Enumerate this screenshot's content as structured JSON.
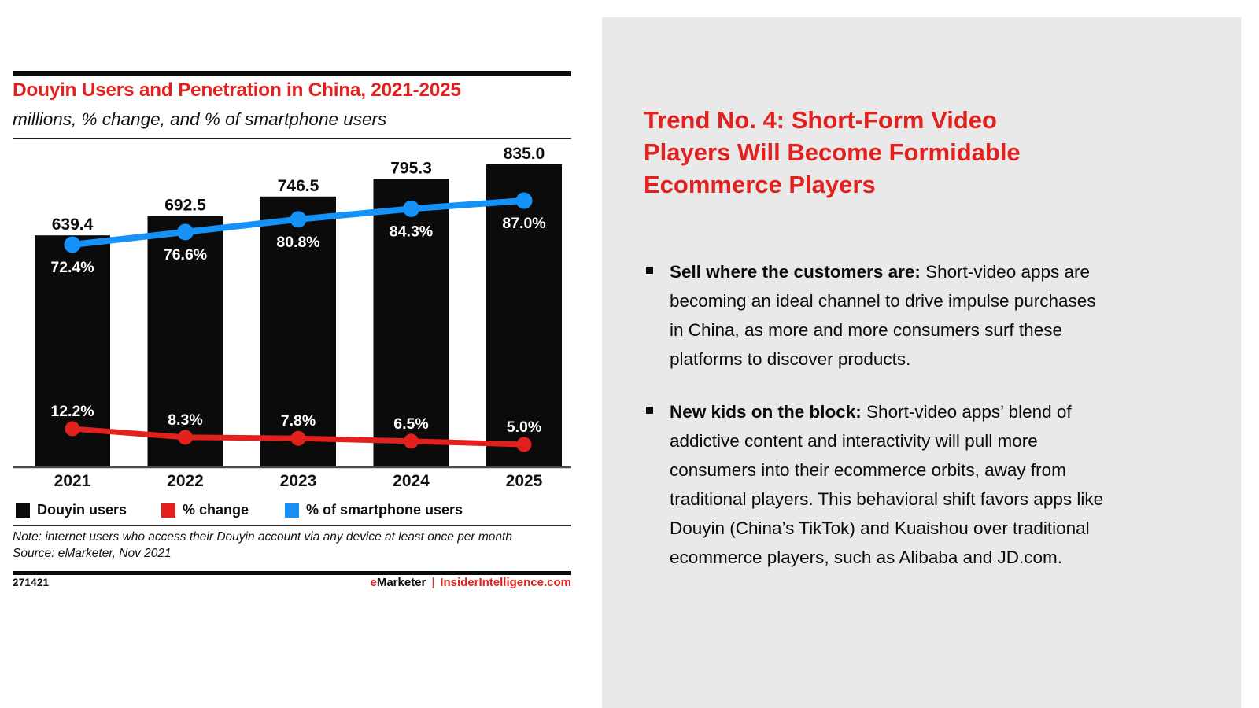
{
  "brand": {
    "red": "#e2211f",
    "blue": "#1591f8",
    "black": "#0b0b0b",
    "panel_bg": "#e9e9e9"
  },
  "chart": {
    "title": "Douyin Users and Penetration in China, 2021-2025",
    "subtitle": "millions, % change, and % of smartphone users",
    "legend": [
      {
        "label": "Douyin users",
        "color": "#0b0b0b"
      },
      {
        "label": "% change",
        "color": "#e2211f"
      },
      {
        "label": "% of smartphone users",
        "color": "#1591f8"
      }
    ],
    "note_line1": "Note: internet users who access their Douyin account via any device at least once per month",
    "note_line2": "Source: eMarketer, Nov 2021",
    "chart_id": "271421",
    "footer_brand_e": "e",
    "footer_brand_rest": "Marketer",
    "footer_separator": "|",
    "footer_site": "InsiderIntelligence.com"
  },
  "chart_data": {
    "type": "bar",
    "title": "Douyin Users and Penetration in China, 2021-2025",
    "subtitle": "millions, % change, and % of smartphone users",
    "categories": [
      "2021",
      "2022",
      "2023",
      "2024",
      "2025"
    ],
    "series": [
      {
        "name": "Douyin users",
        "type": "bar",
        "unit": "millions",
        "color": "#0b0b0b",
        "values": [
          639.4,
          692.5,
          746.5,
          795.3,
          835.0
        ]
      },
      {
        "name": "% change",
        "type": "line",
        "unit": "%",
        "color": "#e2211f",
        "values": [
          12.2,
          8.3,
          7.8,
          6.5,
          5.0
        ]
      },
      {
        "name": "% of smartphone users",
        "type": "line",
        "unit": "%",
        "color": "#1591f8",
        "values": [
          72.4,
          76.6,
          80.8,
          84.3,
          87.0
        ]
      }
    ],
    "ylim": [
      0,
      900
    ],
    "grid": false,
    "legend_position": "bottom",
    "value_labels": "bars labeled above in millions; line points labeled in white percent text inside bars"
  },
  "panel": {
    "title_lines": [
      "Trend No. 4: Short-Form Video",
      "Players Will Become Formidable",
      "Ecommerce Players"
    ],
    "bullets": [
      {
        "lead": "Sell where the customers are:",
        "text": " Short-video apps are becoming an ideal channel to drive impulse purchases in China, as more and more consumers surf these platforms to discover products."
      },
      {
        "lead": "New kids on the block:",
        "text": " Short-video apps’ blend of addictive content and interactivity will pull more consumers into their ecommerce orbits, away from traditional players. This behavioral shift favors apps like Douyin (China’s TikTok) and Kuaishou over traditional ecommerce players, such as Alibaba and JD.com."
      }
    ]
  }
}
